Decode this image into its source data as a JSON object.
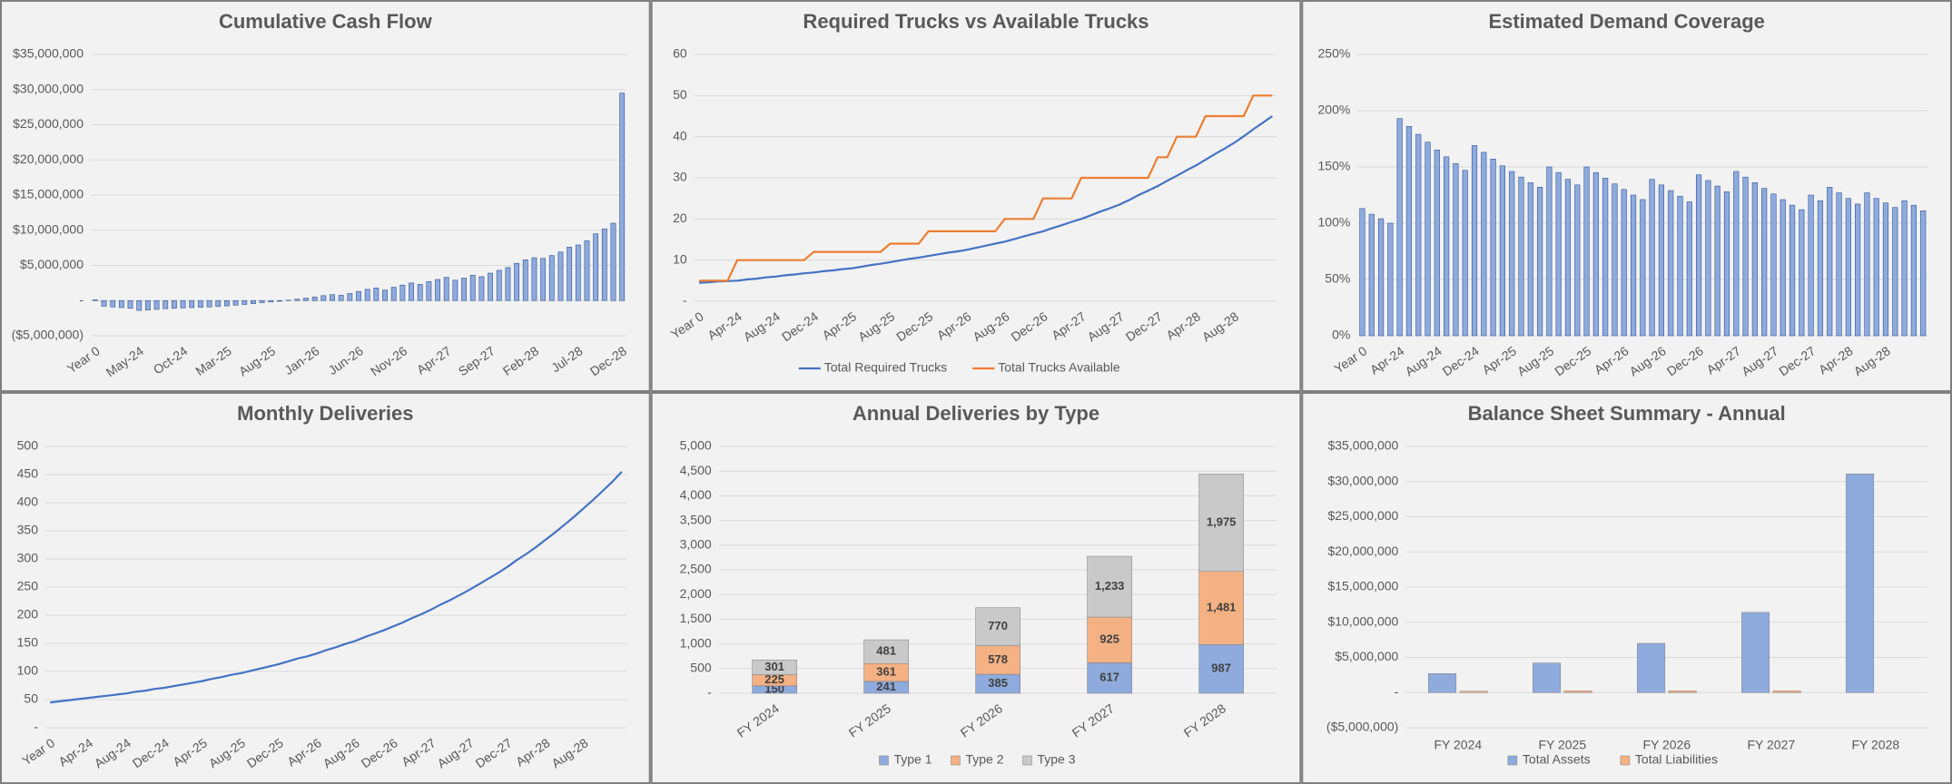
{
  "chart_data": [
    {
      "type": "bar",
      "title": "Cumulative Cash Flow",
      "categories": [
        "Year 0",
        null,
        null,
        null,
        null,
        "May-24",
        null,
        null,
        null,
        null,
        "Oct-24",
        null,
        null,
        null,
        null,
        "Mar-25",
        null,
        null,
        null,
        null,
        "Aug-25",
        null,
        null,
        null,
        null,
        "Jan-26",
        null,
        null,
        null,
        null,
        "Jun-26",
        null,
        null,
        null,
        null,
        "Nov-26",
        null,
        null,
        null,
        null,
        "Apr-27",
        null,
        null,
        null,
        null,
        "Sep-27",
        null,
        null,
        null,
        null,
        "Feb-28",
        null,
        null,
        null,
        null,
        "Jul-28",
        null,
        null,
        null,
        null,
        "Dec-28"
      ],
      "values": [
        100000,
        -800000,
        -900000,
        -1000000,
        -1100000,
        -1400000,
        -1350000,
        -1250000,
        -1150000,
        -1100000,
        -1050000,
        -1000000,
        -950000,
        -900000,
        -850000,
        -750000,
        -650000,
        -550000,
        -450000,
        -300000,
        -200000,
        -100000,
        50000,
        200000,
        350000,
        500000,
        700000,
        850000,
        750000,
        1000000,
        1300000,
        1600000,
        1800000,
        1500000,
        1900000,
        2200000,
        2500000,
        2300000,
        2700000,
        3000000,
        3300000,
        2900000,
        3200000,
        3600000,
        3400000,
        3900000,
        4300000,
        4700000,
        5300000,
        5800000,
        6100000,
        6000000,
        6400000,
        6900000,
        7600000,
        7900000,
        8500000,
        9500000,
        10200000,
        11000000,
        29500000
      ],
      "color": "#8faadc",
      "ylim": [
        -5000000,
        35000000
      ],
      "yticks": [
        {
          "value": -5000000,
          "label": "($5,000,000)"
        },
        {
          "value": 0,
          "label": "-"
        },
        {
          "value": 5000000,
          "label": "$5,000,000"
        },
        {
          "value": 10000000,
          "label": "$10,000,000"
        },
        {
          "value": 15000000,
          "label": "$15,000,000"
        },
        {
          "value": 20000000,
          "label": "$20,000,000"
        },
        {
          "value": 25000000,
          "label": "$25,000,000"
        },
        {
          "value": 30000000,
          "label": "$30,000,000"
        },
        {
          "value": 35000000,
          "label": "$35,000,000"
        }
      ],
      "grid": true
    },
    {
      "type": "line",
      "title": "Required Trucks vs Available Trucks",
      "categories": [
        "Year 0",
        null,
        null,
        null,
        "Apr-24",
        null,
        null,
        null,
        "Aug-24",
        null,
        null,
        null,
        "Dec-24",
        null,
        null,
        null,
        "Apr-25",
        null,
        null,
        null,
        "Aug-25",
        null,
        null,
        null,
        "Dec-25",
        null,
        null,
        null,
        "Apr-26",
        null,
        null,
        null,
        "Aug-26",
        null,
        null,
        null,
        "Dec-26",
        null,
        null,
        null,
        "Apr-27",
        null,
        null,
        null,
        "Aug-27",
        null,
        null,
        null,
        "Dec-27",
        null,
        null,
        null,
        "Apr-28",
        null,
        null,
        null,
        "Aug-28",
        null,
        null,
        null,
        null
      ],
      "series": [
        {
          "name": "Total Required Trucks",
          "color": "#4472c4",
          "values": [
            4.5,
            4.6,
            4.8,
            4.9,
            5,
            5.3,
            5.5,
            5.8,
            6,
            6.3,
            6.5,
            6.8,
            7,
            7.3,
            7.5,
            7.8,
            8,
            8.4,
            8.8,
            9.1,
            9.5,
            9.9,
            10.3,
            10.6,
            11,
            11.4,
            11.8,
            12.1,
            12.5,
            13,
            13.5,
            14,
            14.5,
            15.1,
            15.8,
            16.4,
            17,
            17.8,
            18.5,
            19.3,
            20,
            20.9,
            21.8,
            22.6,
            23.5,
            24.6,
            25.8,
            26.9,
            28,
            29.3,
            30.5,
            31.8,
            33,
            34.4,
            35.8,
            37.1,
            38.5,
            40.1,
            41.8,
            43.4,
            45
          ]
        },
        {
          "name": "Total Trucks Available",
          "color": "#ed7d31",
          "values": [
            5,
            5,
            5,
            5,
            10,
            10,
            10,
            10,
            10,
            10,
            10,
            10,
            12,
            12,
            12,
            12,
            12,
            12,
            12,
            12,
            14,
            14,
            14,
            14,
            17,
            17,
            17,
            17,
            17,
            17,
            17,
            17,
            20,
            20,
            20,
            20,
            25,
            25,
            25,
            25,
            30,
            30,
            30,
            30,
            30,
            30,
            30,
            30,
            35,
            35,
            40,
            40,
            40,
            45,
            45,
            45,
            45,
            45,
            50,
            50,
            50
          ]
        }
      ],
      "ylim": [
        0,
        60
      ],
      "yticks": [
        {
          "value": 0,
          "label": "-"
        },
        10,
        20,
        30,
        40,
        50,
        60
      ],
      "grid": true,
      "legend": "bottom"
    },
    {
      "type": "bar",
      "title": "Estimated Demand Coverage",
      "categories": [
        "Year 0",
        null,
        null,
        null,
        "Apr-24",
        null,
        null,
        null,
        "Aug-24",
        null,
        null,
        null,
        "Dec-24",
        null,
        null,
        null,
        "Apr-25",
        null,
        null,
        null,
        "Aug-25",
        null,
        null,
        null,
        "Dec-25",
        null,
        null,
        null,
        "Apr-26",
        null,
        null,
        null,
        "Aug-26",
        null,
        null,
        null,
        "Dec-26",
        null,
        null,
        null,
        "Apr-27",
        null,
        null,
        null,
        "Aug-27",
        null,
        null,
        null,
        "Dec-27",
        null,
        null,
        null,
        "Apr-28",
        null,
        null,
        null,
        "Aug-28",
        null,
        null,
        null,
        null
      ],
      "values": [
        113,
        108,
        104,
        100,
        193,
        186,
        179,
        172,
        165,
        159,
        153,
        147,
        169,
        163,
        157,
        151,
        146,
        141,
        136,
        132,
        150,
        145,
        139,
        134,
        150,
        145,
        140,
        135,
        130,
        125,
        121,
        139,
        134,
        129,
        124,
        119,
        143,
        138,
        133,
        128,
        146,
        141,
        136,
        131,
        126,
        121,
        116,
        112,
        125,
        120,
        132,
        127,
        122,
        117,
        127,
        122,
        118,
        114,
        120,
        116,
        111
      ],
      "color": "#8faadc",
      "ylim": [
        0,
        250
      ],
      "yticks": [
        {
          "value": 0,
          "label": "0%"
        },
        {
          "value": 50,
          "label": "50%"
        },
        {
          "value": 100,
          "label": "100%"
        },
        {
          "value": 150,
          "label": "150%"
        },
        {
          "value": 200,
          "label": "200%"
        },
        {
          "value": 250,
          "label": "250%"
        }
      ],
      "grid": true
    },
    {
      "type": "line",
      "title": "Monthly Deliveries",
      "categories": [
        "Year 0",
        null,
        null,
        null,
        "Apr-24",
        null,
        null,
        null,
        "Aug-24",
        null,
        null,
        null,
        "Dec-24",
        null,
        null,
        null,
        "Apr-25",
        null,
        null,
        null,
        "Aug-25",
        null,
        null,
        null,
        "Dec-25",
        null,
        null,
        null,
        "Apr-26",
        null,
        null,
        null,
        "Aug-26",
        null,
        null,
        null,
        "Dec-26",
        null,
        null,
        null,
        "Apr-27",
        null,
        null,
        null,
        "Aug-27",
        null,
        null,
        null,
        "Dec-27",
        null,
        null,
        null,
        "Apr-28",
        null,
        null,
        null,
        "Aug-28",
        null,
        null,
        null,
        null
      ],
      "values": [
        45,
        47,
        49,
        51,
        53,
        55,
        57,
        59,
        61,
        64,
        66,
        69,
        71,
        74,
        77,
        80,
        83,
        87,
        90,
        94,
        97,
        101,
        105,
        109,
        113,
        118,
        123,
        127,
        132,
        138,
        143,
        149,
        154,
        161,
        167,
        173,
        180,
        187,
        195,
        202,
        210,
        219,
        227,
        236,
        245,
        255,
        265,
        275,
        286,
        298,
        309,
        321,
        334,
        347,
        361,
        375,
        390,
        405,
        421,
        437,
        455
      ],
      "color": "#4472c4",
      "ylim": [
        0,
        500
      ],
      "yticks": [
        {
          "value": 0,
          "label": "-"
        },
        50,
        100,
        150,
        200,
        250,
        300,
        350,
        400,
        450,
        500
      ],
      "grid": true
    },
    {
      "type": "bar",
      "title": "Annual Deliveries by Type",
      "stacked": true,
      "categories": [
        "FY 2024",
        "FY 2025",
        "FY 2026",
        "FY 2027",
        "FY 2028"
      ],
      "series": [
        {
          "name": "Type 1",
          "color": "#8faadc",
          "values": [
            150,
            241,
            385,
            617,
            987
          ]
        },
        {
          "name": "Type 2",
          "color": "#f4b183",
          "values": [
            225,
            361,
            578,
            925,
            1481
          ],
          "value_labels": [
            "225",
            "361",
            "578",
            "925",
            "1,481"
          ]
        },
        {
          "name": "Type 3",
          "color": "#c9c9c9",
          "values": [
            301,
            481,
            770,
            1233,
            1975
          ],
          "value_labels": [
            "301",
            "481",
            "770",
            "1,233",
            "1,975"
          ]
        }
      ],
      "ylim": [
        0,
        5000
      ],
      "yticks": [
        {
          "value": 0,
          "label": "-"
        },
        500,
        {
          "value": 1000,
          "label": "1,000"
        },
        {
          "value": 1500,
          "label": "1,500"
        },
        {
          "value": 2000,
          "label": "2,000"
        },
        {
          "value": 2500,
          "label": "2,500"
        },
        {
          "value": 3000,
          "label": "3,000"
        },
        {
          "value": 3500,
          "label": "3,500"
        },
        {
          "value": 4000,
          "label": "4,000"
        },
        {
          "value": 4500,
          "label": "4,500"
        },
        {
          "value": 5000,
          "label": "5,000"
        }
      ],
      "grid": true,
      "legend": "bottom"
    },
    {
      "type": "bar",
      "title": "Balance Sheet Summary - Annual",
      "categories": [
        "FY 2024",
        "FY 2025",
        "FY 2026",
        "FY 2027",
        "FY 2028"
      ],
      "series": [
        {
          "name": "Total Assets",
          "color": "#8faadc",
          "values": [
            2700000,
            4200000,
            7000000,
            11400000,
            31100000
          ]
        },
        {
          "name": "Total Liabilities",
          "color": "#f4b183",
          "values": [
            200000,
            250000,
            250000,
            250000,
            0
          ]
        }
      ],
      "ylim": [
        -5000000,
        35000000
      ],
      "yticks": [
        {
          "value": -5000000,
          "label": "($5,000,000)"
        },
        {
          "value": 0,
          "label": "-"
        },
        {
          "value": 5000000,
          "label": "$5,000,000"
        },
        {
          "value": 10000000,
          "label": "$10,000,000"
        },
        {
          "value": 15000000,
          "label": "$15,000,000"
        },
        {
          "value": 20000000,
          "label": "$20,000,000"
        },
        {
          "value": 25000000,
          "label": "$25,000,000"
        },
        {
          "value": 30000000,
          "label": "$30,000,000"
        },
        {
          "value": 35000000,
          "label": "$35,000,000"
        }
      ],
      "grid": true,
      "legend": "bottom"
    }
  ]
}
